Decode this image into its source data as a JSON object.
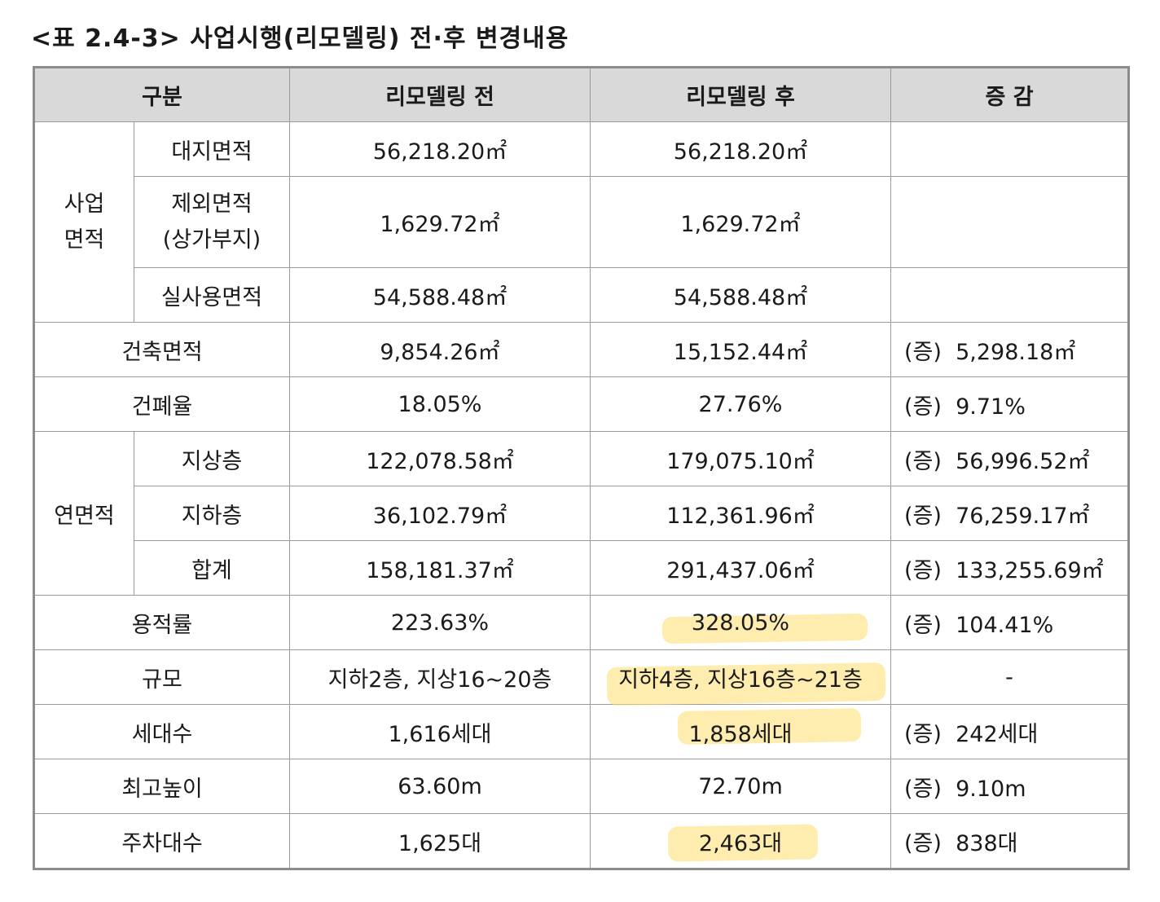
{
  "title": "<표 2.4-3> 사업시행(리모델링) 전·후 변경내용",
  "headers": {
    "category": "구분",
    "before": "리모델링 전",
    "after": "리모델링 후",
    "change": "증 감"
  },
  "site_area_group": "사업\n면적",
  "floor_area_group": "연면적",
  "rows": {
    "site": {
      "label": "대지면적",
      "before": "56,218.20㎡",
      "after": "56,218.20㎡",
      "change": ""
    },
    "excluded": {
      "label": "제외면적\n(상가부지)",
      "before": "1,629.72㎡",
      "after": "1,629.72㎡",
      "change": ""
    },
    "actual": {
      "label": "실사용면적",
      "before": "54,588.48㎡",
      "after": "54,588.48㎡",
      "change": ""
    },
    "building": {
      "label": "건축면적",
      "before": "9,854.26㎡",
      "after": "15,152.44㎡",
      "change_prefix": "(증)",
      "change": "5,298.18㎡"
    },
    "coverage": {
      "label": "건폐율",
      "before": "18.05%",
      "after": "27.76%",
      "change_prefix": "(증)",
      "change": "9.71%"
    },
    "above": {
      "label": "지상층",
      "before": "122,078.58㎡",
      "after": "179,075.10㎡",
      "change_prefix": "(증)",
      "change": "56,996.52㎡"
    },
    "below": {
      "label": "지하층",
      "before": "36,102.79㎡",
      "after": "112,361.96㎡",
      "change_prefix": "(증)",
      "change": "76,259.17㎡"
    },
    "total": {
      "label": "합계",
      "before": "158,181.37㎡",
      "after": "291,437.06㎡",
      "change_prefix": "(증)",
      "change": "133,255.69㎡"
    },
    "far": {
      "label": "용적률",
      "before": "223.63%",
      "after": "328.05%",
      "change_prefix": "(증)",
      "change": "104.41%"
    },
    "scale": {
      "label": "규모",
      "before": "지하2층, 지상16~20층",
      "after": "지하4층, 지상16층~21층",
      "change": "-"
    },
    "units": {
      "label": "세대수",
      "before": "1,616세대",
      "after": "1,858세대",
      "change_prefix": "(증)",
      "change": "242세대"
    },
    "height": {
      "label": "최고높이",
      "before": "63.60m",
      "after": "72.70m",
      "change_prefix": "(증)",
      "change": "9.10m"
    },
    "parking": {
      "label": "주차대수",
      "before": "1,625대",
      "after": "2,463대",
      "change_prefix": "(증)",
      "change": "838대"
    }
  },
  "highlight_color": "#FFDE6E"
}
